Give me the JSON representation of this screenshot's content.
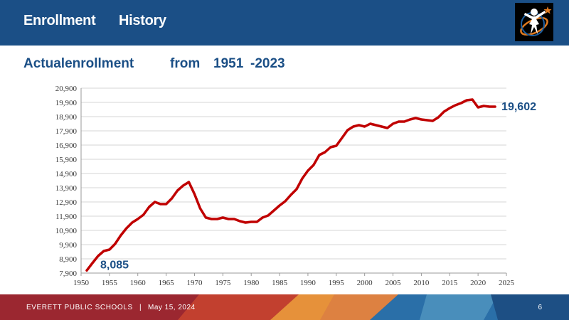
{
  "header": {
    "title_part1": "Enrollment",
    "title_part2": "History"
  },
  "subtitle": {
    "part1": "Actualenrollment",
    "part2": "from",
    "part3": "1951",
    "part4": "-2023"
  },
  "logo": {
    "icon": "district-logo-icon"
  },
  "footer": {
    "org": "EVERETT PUBLIC SCHOOLS",
    "separator": "|",
    "date": "May 15, 2024",
    "page": "6"
  },
  "colors": {
    "header": "#1b4f86",
    "line": "#c00000",
    "footer_red": "#9b2730",
    "footer_blue": "#2a6fa8",
    "footer_orange": "#e6913a"
  },
  "chart_data": {
    "type": "line",
    "x_ticks": [
      1950,
      1955,
      1960,
      1965,
      1970,
      1975,
      1980,
      1985,
      1990,
      1995,
      2000,
      2005,
      2010,
      2015,
      2020,
      2025
    ],
    "y_ticks": [
      7900,
      8900,
      9900,
      10900,
      11900,
      12900,
      13900,
      14900,
      15900,
      16900,
      17900,
      18900,
      19900,
      20900
    ],
    "x_tick_labels": [
      "1950",
      "1955",
      "1960",
      "1965",
      "1970",
      "1975",
      "1980",
      "1985",
      "1990",
      "1995",
      "2000",
      "2005",
      "2010",
      "2015",
      "2020",
      "2025"
    ],
    "y_tick_labels": [
      "7,900",
      "8,900",
      "9,900",
      "10,900",
      "11,900",
      "12,900",
      "13,900",
      "14,900",
      "15,900",
      "16,900",
      "17,900",
      "18,900",
      "19,900",
      "20,900"
    ],
    "xlim": [
      1950,
      2025
    ],
    "ylim": [
      7900,
      20900
    ],
    "grid": true,
    "annotations": [
      {
        "text": "8,085",
        "x": 1951,
        "y": 8085
      },
      {
        "text": "19,602",
        "x": 2023,
        "y": 19602
      }
    ],
    "series": [
      {
        "x": [
          1951,
          1952,
          1953,
          1954,
          1955,
          1956,
          1957,
          1958,
          1959,
          1960,
          1961,
          1962,
          1963,
          1964,
          1965,
          1966,
          1967,
          1968,
          1969,
          1970,
          1971,
          1972,
          1973,
          1974,
          1975,
          1976,
          1977,
          1978,
          1979,
          1980,
          1981,
          1982,
          1983,
          1984,
          1985,
          1986,
          1987,
          1988,
          1989,
          1990,
          1991,
          1992,
          1993,
          1994,
          1995,
          1996,
          1997,
          1998,
          1999,
          2000,
          2001,
          2002,
          2003,
          2004,
          2005,
          2006,
          2007,
          2008,
          2009,
          2010,
          2011,
          2012,
          2013,
          2014,
          2015,
          2016,
          2017,
          2018,
          2019,
          2020,
          2021,
          2022,
          2023
        ],
        "values": [
          8085,
          8600,
          9100,
          9450,
          9550,
          9950,
          10550,
          11050,
          11450,
          11700,
          12000,
          12550,
          12900,
          12750,
          12750,
          13150,
          13700,
          14050,
          14300,
          13450,
          12450,
          11800,
          11700,
          11700,
          11800,
          11700,
          11700,
          11550,
          11450,
          11500,
          11500,
          11800,
          11950,
          12300,
          12650,
          12950,
          13400,
          13800,
          14550,
          15100,
          15500,
          16200,
          16400,
          16750,
          16850,
          17400,
          17950,
          18200,
          18300,
          18200,
          18400,
          18300,
          18200,
          18100,
          18400,
          18550,
          18550,
          18700,
          18800,
          18700,
          18650,
          18600,
          18850,
          19250,
          19500,
          19700,
          19850,
          20050,
          20100,
          19550,
          19650,
          19600,
          19602
        ]
      }
    ]
  }
}
